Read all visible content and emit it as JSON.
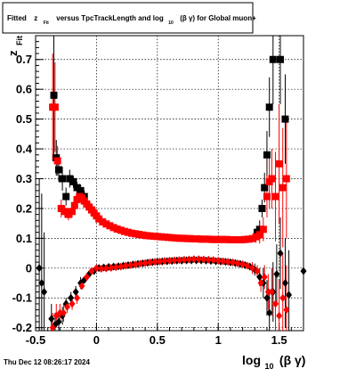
{
  "title": {
    "p1": "Fitted",
    "z": "z",
    "fit_sub": "Fit",
    "p2": "versus TpcTrackLength and log",
    "log_sub": "10",
    "p3": "(β γ) for Global muon+"
  },
  "footer": "Thu Dec 12 08:26:17 2024",
  "chart_data": {
    "type": "scatter",
    "title": "Fitted z_Fit versus TpcTrackLength and log10(β γ) for Global muon+",
    "xlabel": "log10(β γ)",
    "ylabel": "z_Fit",
    "axis_labels": {
      "x_main": "log",
      "x_sub": "10",
      "x_rest": "(β γ)",
      "y_main": "z",
      "y_sub": "Fit"
    },
    "xlim": [
      -0.5,
      1.7
    ],
    "ylim": [
      -0.21,
      0.78
    ],
    "x_ticks": [
      "-0.5",
      "0",
      "0.5",
      "1",
      "1.5"
    ],
    "x_tick_values": [
      -0.5,
      0,
      0.5,
      1,
      1.5
    ],
    "y_ticks": [
      "-0.2",
      "-0.1",
      "0",
      "0.1",
      "0.2",
      "0.3",
      "0.4",
      "0.5",
      "0.6",
      "0.7"
    ],
    "y_tick_values": [
      -0.2,
      -0.1,
      0,
      0.1,
      0.2,
      0.3,
      0.4,
      0.5,
      0.6,
      0.7
    ],
    "grid": true,
    "colors": {
      "black": "#000000",
      "red": "#ff0000"
    },
    "series": [
      {
        "color": "#000000",
        "marker": "square",
        "points": [
          [
            -0.35,
            0.58,
            0.2
          ],
          [
            -0.33,
            0.37,
            0.06
          ],
          [
            -0.31,
            0.33,
            0.04
          ],
          [
            -0.28,
            0.3,
            0.04
          ],
          [
            -0.25,
            0.24,
            0.03
          ],
          [
            -0.22,
            0.3,
            0.03
          ],
          [
            -0.19,
            0.29,
            0.02
          ],
          [
            -0.16,
            0.27,
            0.02
          ],
          [
            -0.13,
            0.26,
            0.02
          ],
          [
            -0.1,
            0.24,
            0.02
          ],
          [
            1.32,
            0.12,
            0.02
          ],
          [
            1.34,
            0.13,
            0.03
          ],
          [
            1.36,
            0.2,
            0.03
          ],
          [
            1.38,
            0.27,
            0.05
          ],
          [
            1.4,
            0.38,
            0.08
          ],
          [
            1.42,
            0.54,
            0.1
          ],
          [
            1.45,
            0.7,
            0.15
          ],
          [
            1.51,
            0.7,
            0.15
          ],
          [
            1.55,
            0.5,
            0.15
          ]
        ]
      },
      {
        "color": "#ff0000",
        "marker": "square",
        "points": [
          [
            -0.36,
            0.54,
            0.18
          ],
          [
            -0.34,
            0.54,
            0.15
          ],
          [
            -0.32,
            0.36,
            0.05
          ],
          [
            -0.29,
            0.2,
            0.03
          ],
          [
            -0.26,
            0.19,
            0.02
          ],
          [
            -0.23,
            0.18,
            0.02
          ],
          [
            -0.2,
            0.19,
            0.02
          ],
          [
            -0.18,
            0.21,
            0.02
          ],
          [
            -0.16,
            0.23,
            0.02
          ],
          [
            -0.14,
            0.24,
            0.02
          ],
          [
            -0.12,
            0.235,
            0.02
          ],
          [
            -0.1,
            0.225,
            0.01
          ],
          [
            -0.08,
            0.215,
            0.01
          ],
          [
            -0.06,
            0.205,
            0.01
          ],
          [
            -0.04,
            0.195,
            0.01
          ],
          [
            -0.02,
            0.185,
            0.01
          ],
          [
            0.0,
            0.175,
            0.01
          ],
          [
            0.02,
            0.165,
            0.01
          ],
          [
            0.05,
            0.155,
            0.01
          ],
          [
            0.08,
            0.148,
            0.01
          ],
          [
            0.11,
            0.142,
            0.01
          ],
          [
            0.14,
            0.136,
            0.01
          ],
          [
            0.17,
            0.131,
            0.01
          ],
          [
            0.2,
            0.127,
            0.01
          ],
          [
            0.23,
            0.123,
            0.01
          ],
          [
            0.26,
            0.12,
            0.01
          ],
          [
            0.29,
            0.117,
            0.01
          ],
          [
            0.32,
            0.115,
            0.01
          ],
          [
            0.35,
            0.113,
            0.01
          ],
          [
            0.38,
            0.111,
            0.01
          ],
          [
            0.41,
            0.109,
            0.01
          ],
          [
            0.44,
            0.108,
            0.01
          ],
          [
            0.47,
            0.107,
            0.01
          ],
          [
            0.5,
            0.106,
            0.01
          ],
          [
            0.53,
            0.105,
            0.01
          ],
          [
            0.56,
            0.104,
            0.01
          ],
          [
            0.59,
            0.103,
            0.01
          ],
          [
            0.62,
            0.102,
            0.01
          ],
          [
            0.65,
            0.101,
            0.01
          ],
          [
            0.68,
            0.1,
            0.01
          ],
          [
            0.71,
            0.1,
            0.01
          ],
          [
            0.74,
            0.099,
            0.01
          ],
          [
            0.77,
            0.099,
            0.01
          ],
          [
            0.8,
            0.098,
            0.01
          ],
          [
            0.83,
            0.098,
            0.01
          ],
          [
            0.86,
            0.097,
            0.01
          ],
          [
            0.89,
            0.097,
            0.01
          ],
          [
            0.92,
            0.097,
            0.01
          ],
          [
            0.95,
            0.096,
            0.01
          ],
          [
            0.98,
            0.096,
            0.01
          ],
          [
            1.01,
            0.096,
            0.01
          ],
          [
            1.04,
            0.096,
            0.01
          ],
          [
            1.07,
            0.096,
            0.01
          ],
          [
            1.1,
            0.095,
            0.01
          ],
          [
            1.13,
            0.095,
            0.01
          ],
          [
            1.16,
            0.095,
            0.01
          ],
          [
            1.19,
            0.095,
            0.01
          ],
          [
            1.22,
            0.096,
            0.01
          ],
          [
            1.25,
            0.097,
            0.01
          ],
          [
            1.28,
            0.099,
            0.01
          ],
          [
            1.31,
            0.105,
            0.02
          ],
          [
            1.34,
            0.112,
            0.03
          ],
          [
            1.37,
            0.13,
            0.04
          ],
          [
            1.4,
            0.24,
            0.07
          ],
          [
            1.42,
            0.29,
            0.09
          ],
          [
            1.44,
            0.3,
            0.1
          ],
          [
            1.47,
            0.24,
            0.15
          ],
          [
            1.5,
            0.35,
            0.2
          ],
          [
            1.53,
            0.27,
            0.2
          ],
          [
            1.56,
            0.3,
            0.2
          ]
        ]
      },
      {
        "color": "#000000",
        "marker": "diamond",
        "points": [
          [
            -0.47,
            0.0,
            0.3
          ],
          [
            -0.45,
            -0.05,
            0.3
          ],
          [
            -0.43,
            -0.08,
            0.2
          ],
          [
            -0.37,
            -0.17,
            0.05
          ],
          [
            -0.34,
            -0.19,
            0.04
          ],
          [
            -0.31,
            -0.18,
            0.03
          ],
          [
            -0.28,
            -0.16,
            0.03
          ],
          [
            -0.25,
            -0.12,
            0.02
          ],
          [
            -0.21,
            -0.1,
            0.02
          ],
          [
            -0.17,
            -0.08,
            0.02
          ],
          [
            -0.13,
            -0.05,
            0.02
          ],
          [
            -0.1,
            -0.04,
            0.01
          ],
          [
            -0.06,
            -0.02,
            0.01
          ],
          [
            -0.02,
            -0.01,
            0.01
          ],
          [
            0.02,
            0.0,
            0.01
          ],
          [
            0.06,
            0.002,
            0.01
          ],
          [
            0.1,
            0.004,
            0.01
          ],
          [
            0.14,
            0.005,
            0.01
          ],
          [
            0.18,
            0.006,
            0.01
          ],
          [
            0.22,
            0.008,
            0.01
          ],
          [
            0.26,
            0.01,
            0.01
          ],
          [
            0.3,
            0.012,
            0.01
          ],
          [
            0.34,
            0.014,
            0.01
          ],
          [
            0.38,
            0.016,
            0.01
          ],
          [
            0.42,
            0.018,
            0.01
          ],
          [
            0.46,
            0.02,
            0.01
          ],
          [
            0.5,
            0.021,
            0.01
          ],
          [
            0.54,
            0.022,
            0.01
          ],
          [
            0.58,
            0.023,
            0.01
          ],
          [
            0.62,
            0.024,
            0.01
          ],
          [
            0.66,
            0.025,
            0.01
          ],
          [
            0.7,
            0.025,
            0.01
          ],
          [
            0.74,
            0.026,
            0.01
          ],
          [
            0.78,
            0.026,
            0.01
          ],
          [
            0.82,
            0.026,
            0.01
          ],
          [
            0.86,
            0.026,
            0.01
          ],
          [
            0.9,
            0.025,
            0.01
          ],
          [
            0.94,
            0.024,
            0.01
          ],
          [
            0.98,
            0.023,
            0.01
          ],
          [
            1.02,
            0.022,
            0.01
          ],
          [
            1.06,
            0.021,
            0.01
          ],
          [
            1.1,
            0.019,
            0.01
          ],
          [
            1.14,
            0.017,
            0.01
          ],
          [
            1.18,
            0.014,
            0.01
          ],
          [
            1.22,
            0.01,
            0.01
          ],
          [
            1.26,
            0.005,
            0.01
          ],
          [
            1.3,
            -0.005,
            0.02
          ],
          [
            1.34,
            -0.03,
            0.03
          ],
          [
            1.37,
            -0.05,
            0.05
          ],
          [
            1.4,
            -0.1,
            0.06
          ],
          [
            1.42,
            -0.15,
            0.08
          ],
          [
            1.45,
            -0.08,
            0.1
          ],
          [
            1.48,
            -0.02,
            0.1
          ],
          [
            1.51,
            0.05,
            0.12
          ],
          [
            1.55,
            -0.05,
            0.15
          ],
          [
            1.58,
            -0.09,
            0.15
          ],
          [
            1.7,
            -0.01,
            0.1
          ]
        ]
      },
      {
        "color": "#ff0000",
        "marker": "diamond",
        "points": [
          [
            -0.36,
            -0.2,
            0.05
          ],
          [
            -0.33,
            -0.16,
            0.04
          ],
          [
            -0.3,
            -0.15,
            0.03
          ],
          [
            -0.27,
            -0.15,
            0.03
          ],
          [
            -0.24,
            -0.13,
            0.02
          ],
          [
            -0.2,
            -0.12,
            0.02
          ],
          [
            -0.16,
            -0.1,
            0.02
          ],
          [
            -0.12,
            -0.06,
            0.01
          ],
          [
            -0.08,
            -0.03,
            0.01
          ],
          [
            -0.04,
            -0.01,
            0.01
          ],
          [
            0.0,
            0.0,
            0.01
          ],
          [
            0.04,
            -0.002,
            0.01
          ],
          [
            0.08,
            -0.001,
            0.01
          ],
          [
            0.12,
            0.001,
            0.01
          ],
          [
            0.16,
            0.003,
            0.01
          ],
          [
            0.2,
            0.005,
            0.01
          ],
          [
            0.24,
            0.008,
            0.01
          ],
          [
            0.28,
            0.01,
            0.01
          ],
          [
            0.32,
            0.012,
            0.01
          ],
          [
            0.36,
            0.015,
            0.01
          ],
          [
            0.4,
            0.017,
            0.01
          ],
          [
            0.44,
            0.019,
            0.01
          ],
          [
            0.48,
            0.021,
            0.01
          ],
          [
            0.52,
            0.022,
            0.01
          ],
          [
            0.56,
            0.024,
            0.01
          ],
          [
            0.6,
            0.025,
            0.01
          ],
          [
            0.64,
            0.026,
            0.01
          ],
          [
            0.68,
            0.027,
            0.01
          ],
          [
            0.72,
            0.028,
            0.01
          ],
          [
            0.76,
            0.029,
            0.01
          ],
          [
            0.8,
            0.03,
            0.01
          ],
          [
            0.84,
            0.03,
            0.01
          ],
          [
            0.88,
            0.029,
            0.01
          ],
          [
            0.92,
            0.028,
            0.01
          ],
          [
            0.96,
            0.027,
            0.01
          ],
          [
            1.0,
            0.025,
            0.01
          ],
          [
            1.04,
            0.023,
            0.01
          ],
          [
            1.08,
            0.021,
            0.01
          ],
          [
            1.12,
            0.019,
            0.01
          ],
          [
            1.16,
            0.016,
            0.01
          ],
          [
            1.2,
            0.013,
            0.01
          ],
          [
            1.24,
            0.008,
            0.01
          ],
          [
            1.28,
            0.0,
            0.02
          ],
          [
            1.32,
            -0.01,
            0.02
          ],
          [
            1.35,
            -0.05,
            0.03
          ],
          [
            1.38,
            -0.03,
            0.04
          ],
          [
            1.41,
            -0.08,
            0.06
          ],
          [
            1.44,
            -0.08,
            0.08
          ],
          [
            1.47,
            -0.12,
            0.1
          ],
          [
            1.5,
            -0.16,
            0.12
          ],
          [
            1.53,
            -0.1,
            0.15
          ],
          [
            1.56,
            -0.14,
            0.15
          ]
        ]
      }
    ]
  }
}
